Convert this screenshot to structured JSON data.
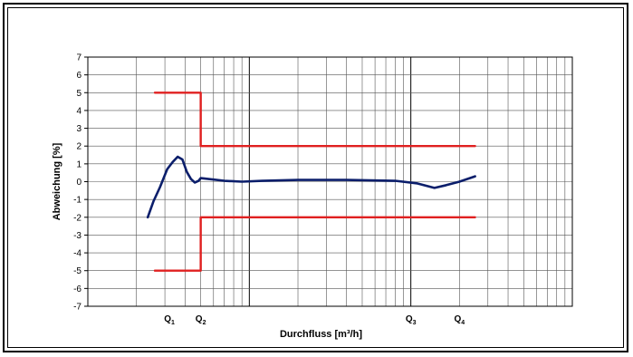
{
  "chart_data": {
    "type": "line",
    "title": "",
    "xlabel": "Durchfluss [m³/h]",
    "ylabel": "Abweichung [%]",
    "x_scale": "log",
    "x_range": [
      1,
      1000
    ],
    "ylim": [
      -7,
      7
    ],
    "y_ticks": [
      7,
      6,
      5,
      4,
      3,
      2,
      1,
      0,
      -1,
      -2,
      -3,
      -4,
      -5,
      -6,
      -7
    ],
    "grid": true,
    "legend": "none",
    "x_markers": [
      {
        "main": "Q",
        "sub": "1",
        "x": 3.2
      },
      {
        "main": "Q",
        "sub": "2",
        "x": 5.0
      },
      {
        "main": "Q",
        "sub": "3",
        "x": 100
      },
      {
        "main": "Q",
        "sub": "4",
        "x": 200
      }
    ],
    "series": [
      {
        "color": "#0b1e6b",
        "x": [
          2.35,
          2.55,
          2.8,
          3.1,
          3.35,
          3.6,
          3.85,
          4.1,
          4.35,
          4.6,
          4.85,
          5.0,
          5.6,
          7,
          9,
          12,
          20,
          40,
          80,
          110,
          140,
          165,
          200,
          250
        ],
        "y": [
          -2.0,
          -1.1,
          -0.3,
          0.7,
          1.1,
          1.4,
          1.25,
          0.55,
          0.15,
          -0.05,
          0.05,
          0.2,
          0.15,
          0.05,
          0.0,
          0.05,
          0.1,
          0.1,
          0.05,
          -0.1,
          -0.35,
          -0.2,
          0.0,
          0.3
        ]
      },
      {
        "color": "#e02020",
        "x": [
          2.6,
          5.0,
          5.0,
          250
        ],
        "y": [
          5,
          5,
          2,
          2
        ]
      },
      {
        "color": "#e02020",
        "x": [
          2.6,
          5.0,
          5.0,
          250
        ],
        "y": [
          -5,
          -5,
          -2,
          -2
        ]
      }
    ]
  }
}
